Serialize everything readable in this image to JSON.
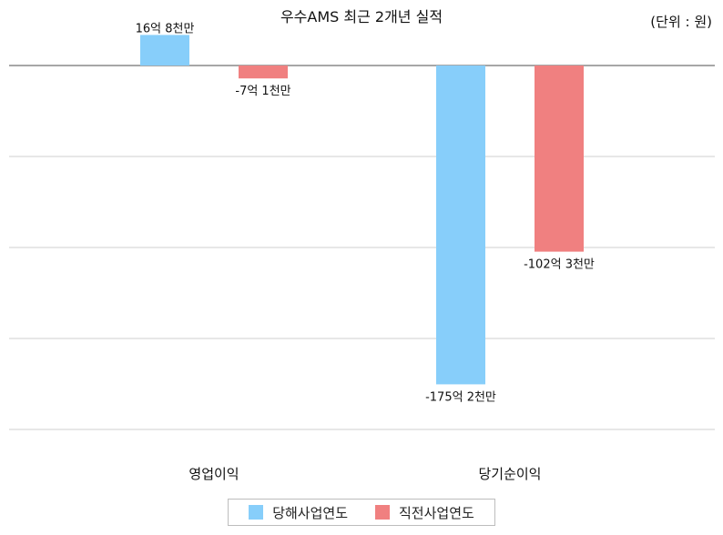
{
  "chart_data": {
    "type": "bar",
    "title": "우수AMS 최근 2개년 실적",
    "unit_label": "(단위 : 원)",
    "categories": [
      "영업이익",
      "당기순이익"
    ],
    "series": [
      {
        "name": "당해사업연도",
        "color": "#87CEFA",
        "values": [
          1680000000,
          -17520000000
        ],
        "labels": [
          "16억 8천만",
          "-175억 2천만"
        ]
      },
      {
        "name": "직전사업연도",
        "color": "#F08080",
        "values": [
          -710000000,
          -10230000000
        ],
        "labels": [
          "-7억 1천만",
          "-102억 3천만"
        ]
      }
    ],
    "ylim": [
      -20000000000,
      2000000000
    ],
    "grid": true,
    "legend_position": "bottom"
  }
}
